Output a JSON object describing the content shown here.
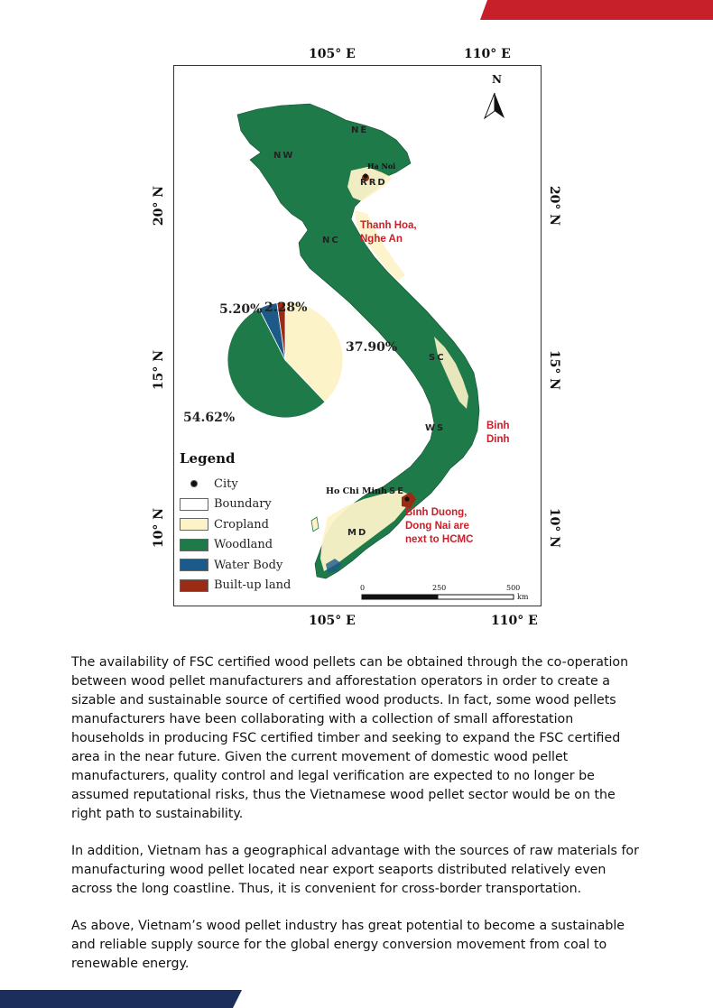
{
  "colors": {
    "accent_red": "#c8202a",
    "navy": "#1c2e5c",
    "woodland": "#1f7a4a",
    "cropland": "#fdf3c8",
    "water_body": "#1c5a8a",
    "built_up": "#9a2b14",
    "boundary": "#ffffff"
  },
  "map": {
    "top_ticks": {
      "left": "105° E",
      "right": "110° E"
    },
    "bottom_ticks": {
      "left": "105° E",
      "right": "110° E"
    },
    "left_ticks": {
      "top": "20° N",
      "middle": "15° N",
      "bottom": "10° N"
    },
    "right_ticks": {
      "top": "20° N",
      "middle": "15° N",
      "bottom": "10° N"
    },
    "north_label": "N",
    "regions": {
      "ne": "NE",
      "nw": "NW",
      "rrd": "RRD",
      "nc": "NC",
      "sc": "SC",
      "ws": "WS",
      "se": "SE",
      "md": "MD"
    },
    "cities": {
      "ha_noi": "Ha Noi",
      "ho_chi_minh": "Ho Chi Minh"
    },
    "notes": {
      "thanh_hoa_line1": "Thanh Hoa,",
      "thanh_hoa_line2": "Nghe An",
      "binh_dinh_line1": "Binh",
      "binh_dinh_line2": "Dinh",
      "binh_duong_line1": "Binh Duong,",
      "binh_duong_line2": "Dong Nai are",
      "binh_duong_line3": "next to HCMC"
    },
    "scale": {
      "t0": "0",
      "t1": "250",
      "t2": "500",
      "unit": "km"
    },
    "legend": {
      "title": "Legend",
      "items": [
        "City",
        "Boundary",
        "Cropland",
        "Woodland",
        "Water Body",
        "Built-up land"
      ]
    }
  },
  "chart_data": {
    "type": "pie",
    "labels": [
      "Cropland",
      "Woodland",
      "Water Body",
      "Built-up land"
    ],
    "values": [
      37.9,
      54.62,
      5.2,
      2.28
    ],
    "value_labels": [
      "37.90%",
      "54.62%",
      "5.20%",
      "2.28%"
    ],
    "colors": [
      "#fdf3c8",
      "#1f7a4a",
      "#1c5a8a",
      "#9a2b14"
    ]
  },
  "paragraphs": [
    "The availability of FSC certified wood pellets can be obtained through the co-operation between wood pellet manufacturers and afforestation operators in order to create a sizable and sustainable source of certified wood products. In fact, some wood pellets manufacturers have been collaborating with a collection of small afforestation households in producing FSC certified timber and seeking to expand the FSC certified area in the near future. Given the current movement of domestic wood pellet manufacturers, quality control and legal verification are expected to no longer be assumed reputational risks, thus the Vietnamese wood pellet sector would be on the right path to sustainability.",
    "In addition, Vietnam has a geographical advantage with the sources of raw materials for manufacturing wood pellet located near export seaports distributed relatively even across the long coastline. Thus, it is convenient for cross-border transportation.",
    "As above, Vietnam’s wood pellet industry has great potential to become a sustainable and reliable supply source for the global energy conversion movement from coal to renewable energy."
  ]
}
